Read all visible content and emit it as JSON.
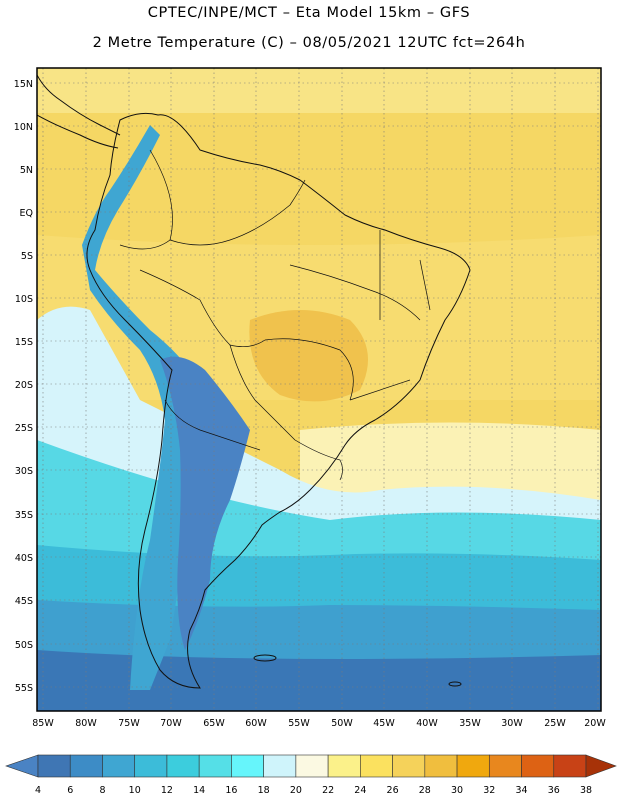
{
  "header": {
    "line1": "CPTEC/INPE/MCT –  Eta Model 15km – GFS",
    "line2": "2 Metre Temperature (C) – 08/05/2021 12UTC fct=264h"
  },
  "map": {
    "region": "South America",
    "lat_labels": [
      "15N",
      "10N",
      "5N",
      "EQ",
      "5S",
      "10S",
      "15S",
      "20S",
      "25S",
      "30S",
      "35S",
      "40S",
      "45S",
      "50S",
      "55S"
    ],
    "lon_labels": [
      "85W",
      "80W",
      "75W",
      "70W",
      "65W",
      "60W",
      "55W",
      "50W",
      "45W",
      "40W",
      "35W",
      "30W",
      "25W",
      "20W"
    ],
    "grid": true
  },
  "colorbar": {
    "ticks": [
      "4",
      "6",
      "8",
      "10",
      "12",
      "14",
      "16",
      "18",
      "20",
      "22",
      "24",
      "26",
      "28",
      "30",
      "32",
      "34",
      "36",
      "38"
    ],
    "colors": [
      "#4a83c4",
      "#3f76b4",
      "#3d8cc6",
      "#3fa6d2",
      "#3cbcd9",
      "#3ccddd",
      "#55dfe7",
      "#66f5fb",
      "#cff4fb",
      "#fbf9e2",
      "#fbf18a",
      "#fbe15f",
      "#f5d25a",
      "#f0be3e",
      "#f0a80e",
      "#e8871e",
      "#dd6214",
      "#c84216",
      "#a73208"
    ],
    "unit": "C"
  }
}
